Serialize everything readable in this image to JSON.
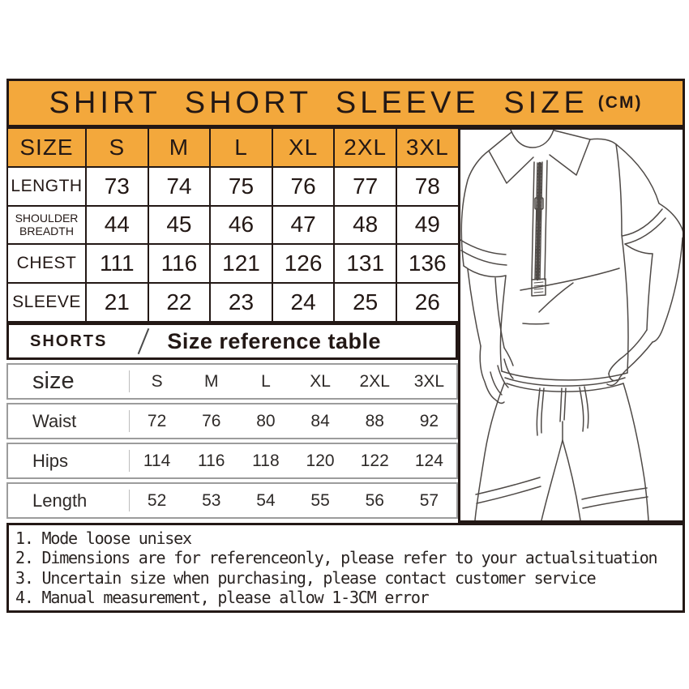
{
  "colors": {
    "accent_orange": "#F3A83C",
    "border_black": "#231815",
    "table_gray_border": "#9c9c9c",
    "line_art_gray": "#4f4a47"
  },
  "title": {
    "text": "SHIRT SHORT SLEEVE SIZE",
    "unit": "(CM)"
  },
  "shirt_table": {
    "header": [
      "SIZE",
      "S",
      "M",
      "L",
      "XL",
      "2XL",
      "3XL"
    ],
    "rows": [
      {
        "label": "LENGTH",
        "values": [
          73,
          74,
          75,
          76,
          77,
          78
        ]
      },
      {
        "label": "SHOULDER BREADTH",
        "values": [
          44,
          45,
          46,
          47,
          48,
          49
        ]
      },
      {
        "label": "CHEST",
        "values": [
          111,
          116,
          121,
          126,
          131,
          136
        ]
      },
      {
        "label": "SLEEVE",
        "values": [
          21,
          22,
          23,
          24,
          25,
          26
        ]
      }
    ]
  },
  "shorts_section": {
    "label": "SHORTS",
    "title": "Size reference table"
  },
  "shorts_table": {
    "header": [
      "size",
      "S",
      "M",
      "L",
      "XL",
      "2XL",
      "3XL"
    ],
    "rows": [
      {
        "label": "Waist",
        "values": [
          72,
          76,
          80,
          84,
          88,
          92
        ]
      },
      {
        "label": "Hips",
        "values": [
          114,
          116,
          118,
          120,
          122,
          124
        ]
      },
      {
        "label": "Length",
        "values": [
          52,
          53,
          54,
          55,
          56,
          57
        ]
      }
    ]
  },
  "notes": [
    "1. Mode loose unisex",
    "2. Dimensions are for referenceonly, please refer to your actualsituation",
    "3. Uncertain size when purchasing, please contact customer service",
    "4. Manual measurement, please allow 1-3CM error"
  ],
  "icons": {
    "figure": "man-wearing-half-zip-polo-and-drawstring-shorts-line-drawing"
  }
}
